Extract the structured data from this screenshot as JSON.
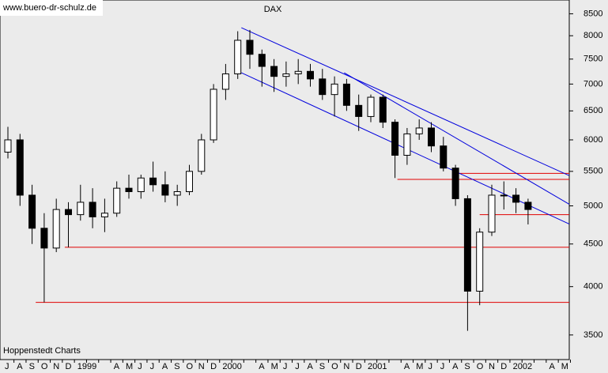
{
  "chart_data": {
    "type": "candlestick",
    "title": "DAX",
    "watermark": "www.buero-dr-schulz.de",
    "credit": "Hoppenstedt Charts",
    "categories": [
      "J",
      "A",
      "S",
      "O",
      "N",
      "D",
      "1999",
      null,
      null,
      "A",
      "M",
      "J",
      "J",
      "A",
      "S",
      "O",
      "N",
      "D",
      "2000",
      null,
      null,
      "A",
      "M",
      "J",
      "J",
      "A",
      "S",
      "O",
      "N",
      "D",
      "2001",
      null,
      null,
      "A",
      "M",
      "J",
      "J",
      "A",
      "S",
      "O",
      "N",
      "D",
      "2002",
      null,
      null,
      "A",
      "M"
    ],
    "open": [
      5800,
      6000,
      5150,
      4700,
      4450,
      4950,
      4880,
      5050,
      4850,
      4900,
      5250,
      5200,
      5400,
      5300,
      5150,
      5200,
      5500,
      6000,
      6900,
      7200,
      7900,
      7600,
      7350,
      7150,
      7200,
      7250,
      7100,
      6800,
      7000,
      6600,
      6400,
      6750,
      6300,
      5750,
      6100,
      6200,
      5900,
      5550,
      5100,
      3950,
      4650,
      5150,
      5150,
      5050,
      null,
      null,
      null
    ],
    "high": [
      6220,
      6100,
      5300,
      4900,
      5100,
      5050,
      5300,
      5250,
      5100,
      5350,
      5450,
      5450,
      5650,
      5500,
      5300,
      5600,
      6100,
      7000,
      7400,
      8100,
      8130,
      7700,
      7500,
      7450,
      7500,
      7400,
      7300,
      7150,
      7100,
      6800,
      6800,
      6800,
      6350,
      6200,
      6350,
      6300,
      6050,
      5600,
      5150,
      4700,
      5300,
      5350,
      5250,
      5100,
      null,
      null,
      null
    ],
    "low": [
      5700,
      5000,
      4500,
      3830,
      4400,
      4460,
      4800,
      4700,
      4650,
      4850,
      5100,
      5100,
      5200,
      5050,
      5000,
      5150,
      5450,
      5950,
      6700,
      7100,
      7300,
      6950,
      6850,
      6950,
      7000,
      6950,
      6700,
      6400,
      6500,
      6150,
      6300,
      6200,
      5400,
      5600,
      6000,
      5800,
      5500,
      5000,
      3540,
      3800,
      4600,
      4950,
      4900,
      4750,
      null,
      null,
      null
    ],
    "close": [
      6000,
      5150,
      4700,
      4450,
      4950,
      4880,
      5050,
      4850,
      4900,
      5250,
      5200,
      5400,
      5300,
      5150,
      5200,
      5500,
      6000,
      6900,
      7200,
      7900,
      7600,
      7350,
      7150,
      7200,
      7250,
      7100,
      6800,
      7000,
      6600,
      6400,
      6750,
      6300,
      5750,
      6100,
      6200,
      5900,
      5550,
      5100,
      3950,
      4650,
      5150,
      5150,
      5050,
      4950,
      null,
      null,
      null
    ],
    "ylim": [
      3270,
      8830
    ],
    "log_scale": true,
    "yticks": [
      3500,
      4000,
      4500,
      5000,
      5500,
      6000,
      6500,
      7000,
      7500,
      8000,
      8500
    ],
    "levels": [
      {
        "value": 3830,
        "x": 2.3,
        "color": "#e00000"
      },
      {
        "value": 4460,
        "x": 4.7,
        "color": "#e00000"
      },
      {
        "value": 4880,
        "x": 39,
        "color": "#e00000"
      },
      {
        "value": 5380,
        "x": 32.2,
        "color": "#e00000"
      },
      {
        "value": 5470,
        "x": 37,
        "color": "#e00000"
      }
    ],
    "trendlines": [
      {
        "x": [
          19.3,
          46.4
        ],
        "values": [
          8180,
          5436
        ],
        "color": "#0000dd"
      },
      {
        "x": [
          19.3,
          46.4
        ],
        "values": [
          7222,
          4756
        ],
        "color": "#0000dd"
      },
      {
        "x": [
          27.8,
          46.4
        ],
        "values": [
          7222,
          5023
        ],
        "color": "#0000dd"
      }
    ]
  }
}
